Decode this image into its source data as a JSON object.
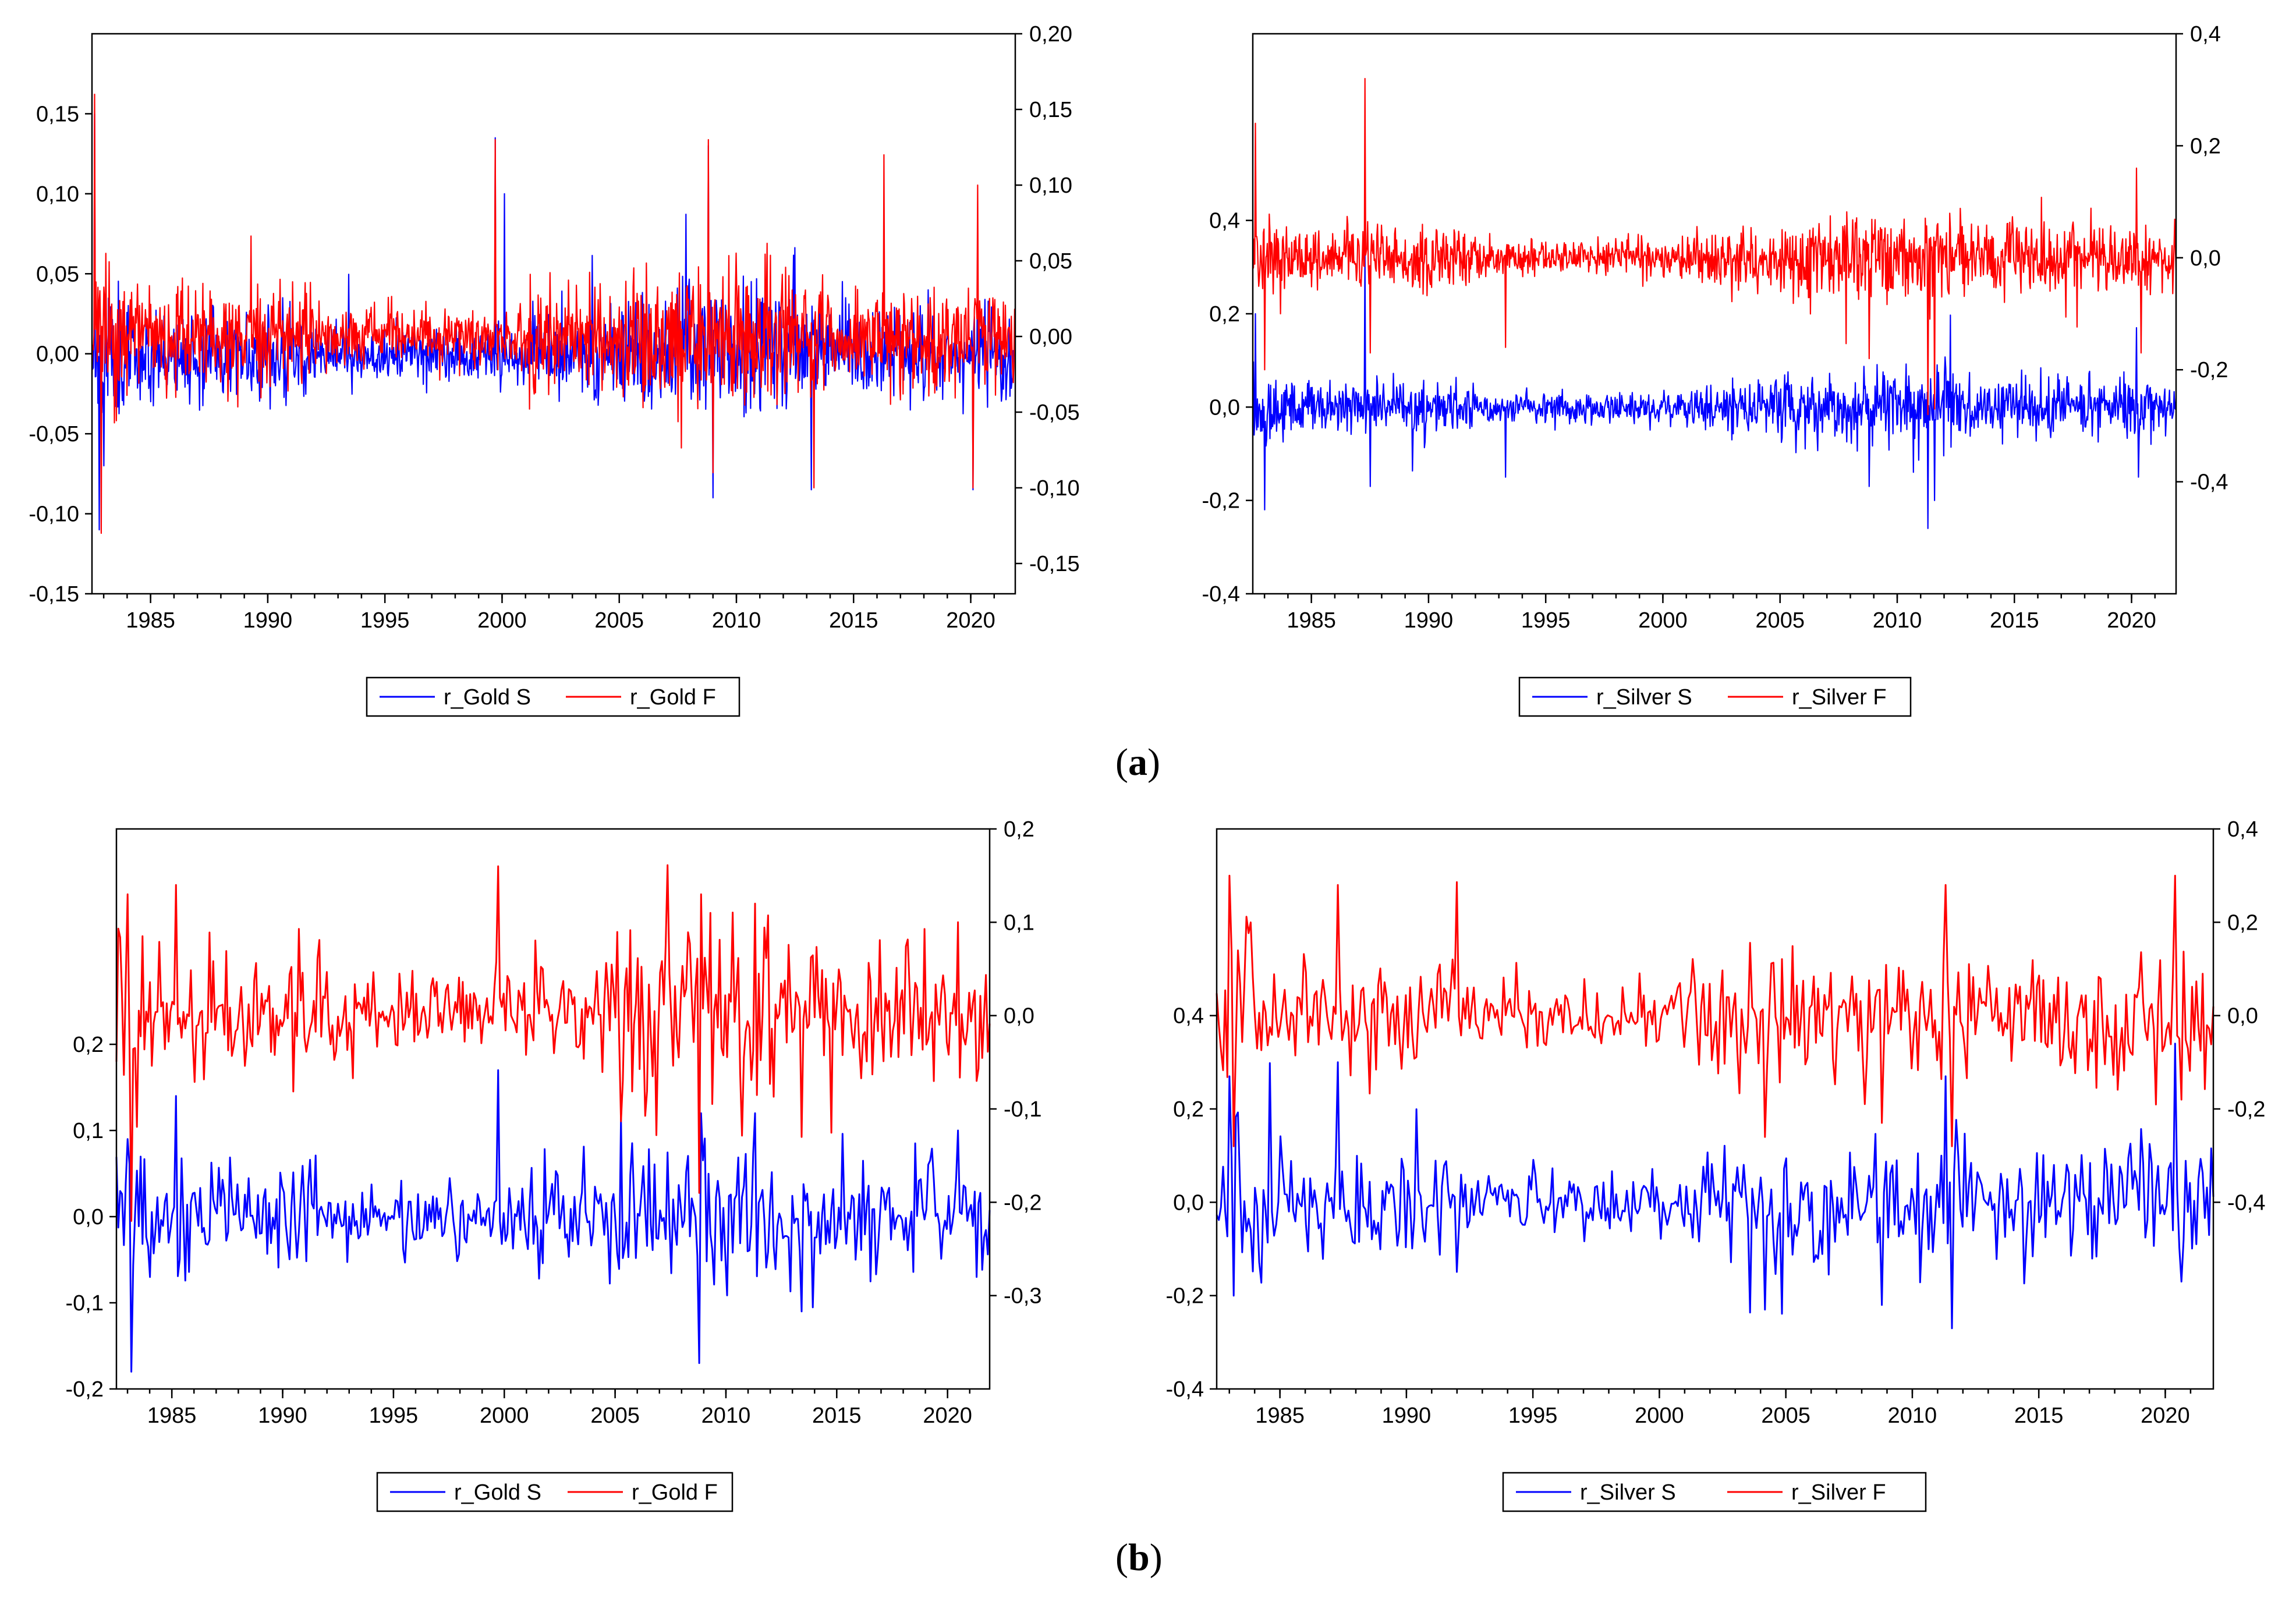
{
  "chart_data": [
    {
      "id": "daily-gold",
      "panel": "a",
      "type": "line",
      "title": "",
      "xlabel": "",
      "ylabel": "",
      "x_range": [
        1982.5,
        2021.9
      ],
      "x_ticks": [
        "1985",
        "1990",
        "1995",
        "2000",
        "2005",
        "2010",
        "2015",
        "2020"
      ],
      "left_axis": {
        "range": [
          -0.15,
          0.2
        ],
        "ticks": [
          "0,15",
          "0,10",
          "0,05",
          "0,00",
          "-0,05",
          "-0,10",
          "-0,15"
        ],
        "tick_values": [
          0.15,
          0.1,
          0.05,
          0.0,
          -0.05,
          -0.1,
          -0.15
        ]
      },
      "right_axis": {
        "range": [
          -0.17,
          0.2
        ],
        "ticks": [
          "0,20",
          "0,15",
          "0,10",
          "0,05",
          "0,00",
          "-0,05",
          "-0,10",
          "-0,15"
        ],
        "tick_values": [
          0.2,
          0.15,
          0.1,
          0.05,
          0.0,
          -0.05,
          -0.1,
          -0.15
        ]
      },
      "series": [
        {
          "name": "r_Gold S",
          "color": "#0000ff",
          "axis": "left",
          "n": 1400,
          "amplitude": 0.014,
          "seed": 11,
          "spikes": [
            [
              1982.6,
              0.15
            ],
            [
              1982.8,
              -0.11
            ],
            [
              1983.0,
              -0.07
            ],
            [
              1999.7,
              0.135
            ],
            [
              2000.1,
              0.1
            ],
            [
              2008.8,
              0.13
            ],
            [
              2009.0,
              -0.09
            ],
            [
              2013.2,
              -0.085
            ],
            [
              2020.1,
              -0.085
            ],
            [
              2020.3,
              0.08
            ]
          ]
        },
        {
          "name": "r_Gold F",
          "color": "#ff0000",
          "axis": "right",
          "n": 1400,
          "amplitude": 0.016,
          "seed": 23,
          "spikes": [
            [
              1982.6,
              0.16
            ],
            [
              1982.9,
              -0.13
            ],
            [
              1999.7,
              0.13
            ],
            [
              2008.8,
              0.13
            ],
            [
              2009.0,
              -0.09
            ],
            [
              2013.3,
              -0.1
            ],
            [
              2016.3,
              0.12
            ],
            [
              2020.1,
              -0.1
            ],
            [
              2020.3,
              0.1
            ]
          ]
        }
      ],
      "legend": [
        "r_Gold S",
        "r_Gold F"
      ]
    },
    {
      "id": "daily-silver",
      "panel": "a",
      "type": "line",
      "title": "",
      "xlabel": "",
      "ylabel": "",
      "x_range": [
        1982.5,
        2021.9
      ],
      "x_ticks": [
        "1985",
        "1990",
        "1995",
        "2000",
        "2005",
        "2010",
        "2015",
        "2020"
      ],
      "left_axis": {
        "range": [
          -0.4,
          0.8
        ],
        "ticks": [
          "0,4",
          "0,2",
          "0,0",
          "-0,2",
          "-0,4"
        ],
        "tick_values": [
          0.4,
          0.2,
          0.0,
          -0.2,
          -0.4
        ]
      },
      "right_axis": {
        "range": [
          -0.6,
          0.4
        ],
        "ticks": [
          "0,4",
          "0,2",
          "0,0",
          "-0,2",
          "-0,4"
        ],
        "tick_values": [
          0.4,
          0.2,
          0.0,
          -0.2,
          -0.4
        ]
      },
      "series": [
        {
          "name": "r_Silver S",
          "color": "#0000ff",
          "axis": "left",
          "n": 1400,
          "amplitude": 0.028,
          "seed": 37,
          "spikes": [
            [
              1982.6,
              0.2
            ],
            [
              1983.0,
              -0.22
            ],
            [
              1987.3,
              0.34
            ],
            [
              1987.5,
              -0.17
            ],
            [
              1993.3,
              -0.15
            ],
            [
              2008.8,
              -0.17
            ],
            [
              2011.3,
              -0.26
            ],
            [
              2011.6,
              -0.2
            ],
            [
              2020.2,
              0.17
            ],
            [
              2020.3,
              -0.15
            ]
          ]
        },
        {
          "name": "r_Silver F",
          "color": "#ff0000",
          "axis": "right",
          "n": 1400,
          "amplitude": 0.028,
          "seed": 41,
          "spikes": [
            [
              1982.6,
              0.24
            ],
            [
              1983.0,
              -0.2
            ],
            [
              1987.3,
              0.32
            ],
            [
              1987.5,
              -0.17
            ],
            [
              1993.3,
              -0.16
            ],
            [
              2008.8,
              -0.18
            ],
            [
              2011.3,
              -0.28
            ],
            [
              2011.6,
              -0.27
            ],
            [
              2020.2,
              0.16
            ],
            [
              2020.4,
              -0.17
            ]
          ]
        }
      ],
      "legend": [
        "r_Silver S",
        "r_Silver F"
      ]
    },
    {
      "id": "monthly-gold",
      "panel": "b",
      "type": "line",
      "title": "",
      "xlabel": "",
      "ylabel": "",
      "x_range": [
        1982.5,
        2021.9
      ],
      "x_ticks": [
        "1985",
        "1990",
        "1995",
        "2000",
        "2005",
        "2010",
        "2015",
        "2020"
      ],
      "left_axis": {
        "range": [
          -0.2,
          0.45
        ],
        "ticks": [
          "0,2",
          "0,1",
          "0,0",
          "-0,1",
          "-0,2"
        ],
        "tick_values": [
          0.2,
          0.1,
          0.0,
          -0.1,
          -0.2
        ]
      },
      "right_axis": {
        "range": [
          -0.4,
          0.2
        ],
        "ticks": [
          "0,2",
          "0,1",
          "0,0",
          "-0,1",
          "-0,2",
          "-0,3"
        ],
        "tick_values": [
          0.2,
          0.1,
          0.0,
          -0.1,
          -0.2,
          -0.3
        ]
      },
      "series": [
        {
          "name": "r_Gold S",
          "color": "#0000ff",
          "axis": "left",
          "n": 470,
          "amplitude": 0.035,
          "seed": 53,
          "spikes": [
            [
              1983.0,
              0.09
            ],
            [
              1983.2,
              -0.18
            ],
            [
              1985.2,
              0.14
            ],
            [
              1999.7,
              0.17
            ],
            [
              2008.8,
              -0.17
            ],
            [
              2008.9,
              0.12
            ],
            [
              2011.3,
              0.12
            ],
            [
              2013.4,
              -0.11
            ],
            [
              2020.5,
              0.1
            ],
            [
              2021.3,
              -0.07
            ]
          ]
        },
        {
          "name": "r_Gold F",
          "color": "#ff0000",
          "axis": "right",
          "n": 470,
          "amplitude": 0.035,
          "seed": 67,
          "spikes": [
            [
              1983.0,
              0.13
            ],
            [
              1983.2,
              -0.22
            ],
            [
              1985.2,
              0.14
            ],
            [
              1999.7,
              0.16
            ],
            [
              2008.8,
              -0.19
            ],
            [
              2008.9,
              0.13
            ],
            [
              2011.3,
              0.12
            ],
            [
              2013.4,
              -0.13
            ],
            [
              2020.5,
              0.1
            ],
            [
              2021.3,
              -0.07
            ]
          ]
        }
      ],
      "legend": [
        "r_Gold S",
        "r_Gold F"
      ]
    },
    {
      "id": "monthly-silver",
      "panel": "b",
      "type": "line",
      "title": "",
      "xlabel": "",
      "ylabel": "",
      "x_range": [
        1982.5,
        2021.9
      ],
      "x_ticks": [
        "1985",
        "1990",
        "1995",
        "2000",
        "2005",
        "2010",
        "2015",
        "2020"
      ],
      "left_axis": {
        "range": [
          -0.4,
          0.8
        ],
        "ticks": [
          "0,4",
          "0,2",
          "0,0",
          "-0,2",
          "-0,4"
        ],
        "tick_values": [
          0.4,
          0.2,
          0.0,
          -0.2,
          -0.4
        ]
      },
      "right_axis": {
        "range": [
          -0.8,
          0.4
        ],
        "ticks": [
          "0,4",
          "0,2",
          "0,0",
          "-0,2",
          "-0,4"
        ],
        "tick_values": [
          0.4,
          0.2,
          0.0,
          -0.2,
          -0.4
        ]
      },
      "series": [
        {
          "name": "r_Silver S",
          "color": "#0000ff",
          "axis": "left",
          "n": 470,
          "amplitude": 0.06,
          "seed": 71,
          "spikes": [
            [
              1983.0,
              0.27
            ],
            [
              1983.2,
              -0.2
            ],
            [
              1987.3,
              0.3
            ],
            [
              2004.2,
              -0.23
            ],
            [
              2008.8,
              -0.22
            ],
            [
              2011.3,
              0.27
            ],
            [
              2011.6,
              -0.27
            ],
            [
              2020.4,
              0.34
            ],
            [
              2020.6,
              -0.17
            ]
          ]
        },
        {
          "name": "r_Silver F",
          "color": "#ff0000",
          "axis": "right",
          "n": 470,
          "amplitude": 0.06,
          "seed": 83,
          "spikes": [
            [
              1983.0,
              0.3
            ],
            [
              1983.2,
              -0.28
            ],
            [
              1987.3,
              0.28
            ],
            [
              2004.2,
              -0.26
            ],
            [
              2008.8,
              -0.23
            ],
            [
              2011.3,
              0.28
            ],
            [
              2011.6,
              -0.28
            ],
            [
              2020.4,
              0.3
            ],
            [
              2020.6,
              -0.18
            ]
          ]
        }
      ],
      "legend": [
        "r_Silver S",
        "r_Silver F"
      ]
    }
  ],
  "panel_labels": {
    "a": "a",
    "b": "b"
  }
}
